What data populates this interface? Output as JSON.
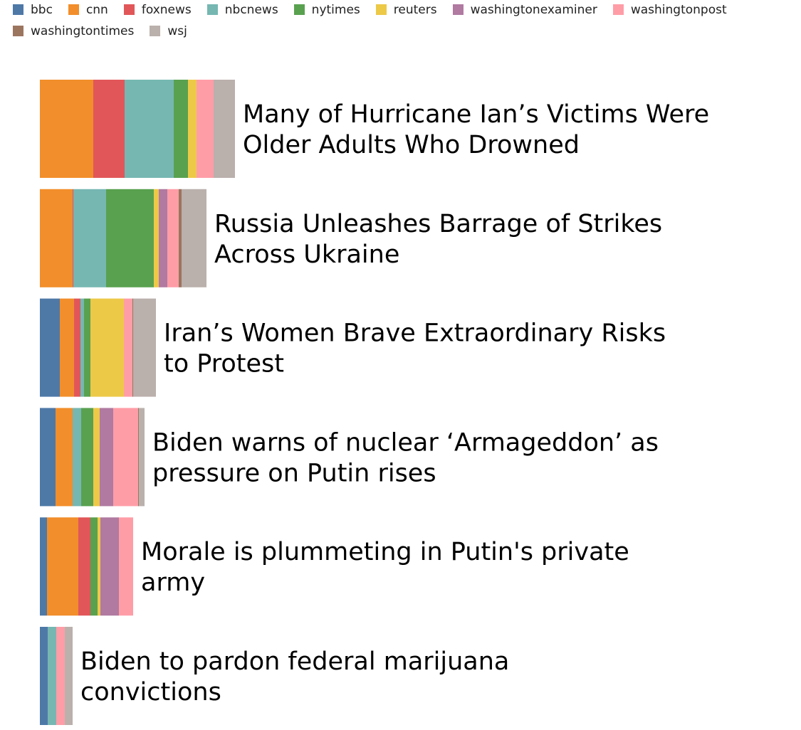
{
  "chart_data": {
    "type": "bar",
    "orientation": "horizontal",
    "stacked": true,
    "legend_position": "top-left",
    "sources": [
      "bbc",
      "cnn",
      "foxnews",
      "nbcnews",
      "nytimes",
      "reuters",
      "washingtonexaminer",
      "washingtonpost",
      "washingtontimes",
      "wsj"
    ],
    "colors": {
      "bbc": "#4e79a7",
      "cnn": "#f28e2b",
      "foxnews": "#e15759",
      "nbcnews": "#76b7b2",
      "nytimes": "#59a14f",
      "reuters": "#edc948",
      "washingtonexaminer": "#b07aa1",
      "washingtonpost": "#ff9da7",
      "washingtontimes": "#9c755f",
      "wsj": "#bab0ac"
    },
    "stories": [
      {
        "title_lines": [
          "Many of Hurricane Ian’s Victims Were",
          "Older Adults Who Drowned"
        ],
        "values": {
          "bbc": 0,
          "cnn": 75,
          "foxnews": 44,
          "nbcnews": 69,
          "nytimes": 20,
          "reuters": 12,
          "washingtonexaminer": 0,
          "washingtonpost": 24,
          "washingtontimes": 0,
          "wsj": 30
        }
      },
      {
        "title_lines": [
          "Russia Unleashes Barrage of Strikes",
          "Across Ukraine"
        ],
        "values": {
          "bbc": 0,
          "cnn": 46,
          "foxnews": 1,
          "nbcnews": 46,
          "nytimes": 67,
          "reuters": 7,
          "washingtonexaminer": 12,
          "washingtonpost": 16,
          "washingtontimes": 4,
          "wsj": 35
        }
      },
      {
        "title_lines": [
          "Iran’s Women Brave Extraordinary Risks",
          "to Protest"
        ],
        "values": {
          "bbc": 28,
          "cnn": 20,
          "foxnews": 9,
          "nbcnews": 5,
          "nytimes": 9,
          "reuters": 47,
          "washingtonexaminer": 0,
          "washingtonpost": 12,
          "washingtontimes": 1,
          "wsj": 32
        }
      },
      {
        "title_lines": [
          "Biden warns of nuclear ‘Armageddon’ as",
          "pressure on Putin rises"
        ],
        "values": {
          "bbc": 22,
          "cnn": 24,
          "foxnews": 0,
          "nbcnews": 12,
          "nytimes": 17,
          "reuters": 9,
          "washingtonexaminer": 19,
          "washingtonpost": 35,
          "washingtontimes": 1,
          "wsj": 8
        }
      },
      {
        "title_lines": [
          "Morale is plummeting in Putin's private",
          "army"
        ],
        "values": {
          "bbc": 10,
          "cnn": 44,
          "foxnews": 17,
          "nbcnews": 0,
          "nytimes": 10,
          "reuters": 4,
          "washingtonexaminer": 26,
          "washingtonpost": 20,
          "washingtontimes": 0,
          "wsj": 0
        }
      },
      {
        "title_lines": [
          "Biden to pardon federal marijuana",
          "convictions"
        ],
        "values": {
          "bbc": 11,
          "cnn": 0,
          "foxnews": 0,
          "nbcnews": 12,
          "nytimes": 0,
          "reuters": 0,
          "washingtonexaminer": 0,
          "washingtonpost": 12,
          "washingtontimes": 0,
          "wsj": 11
        }
      }
    ]
  }
}
